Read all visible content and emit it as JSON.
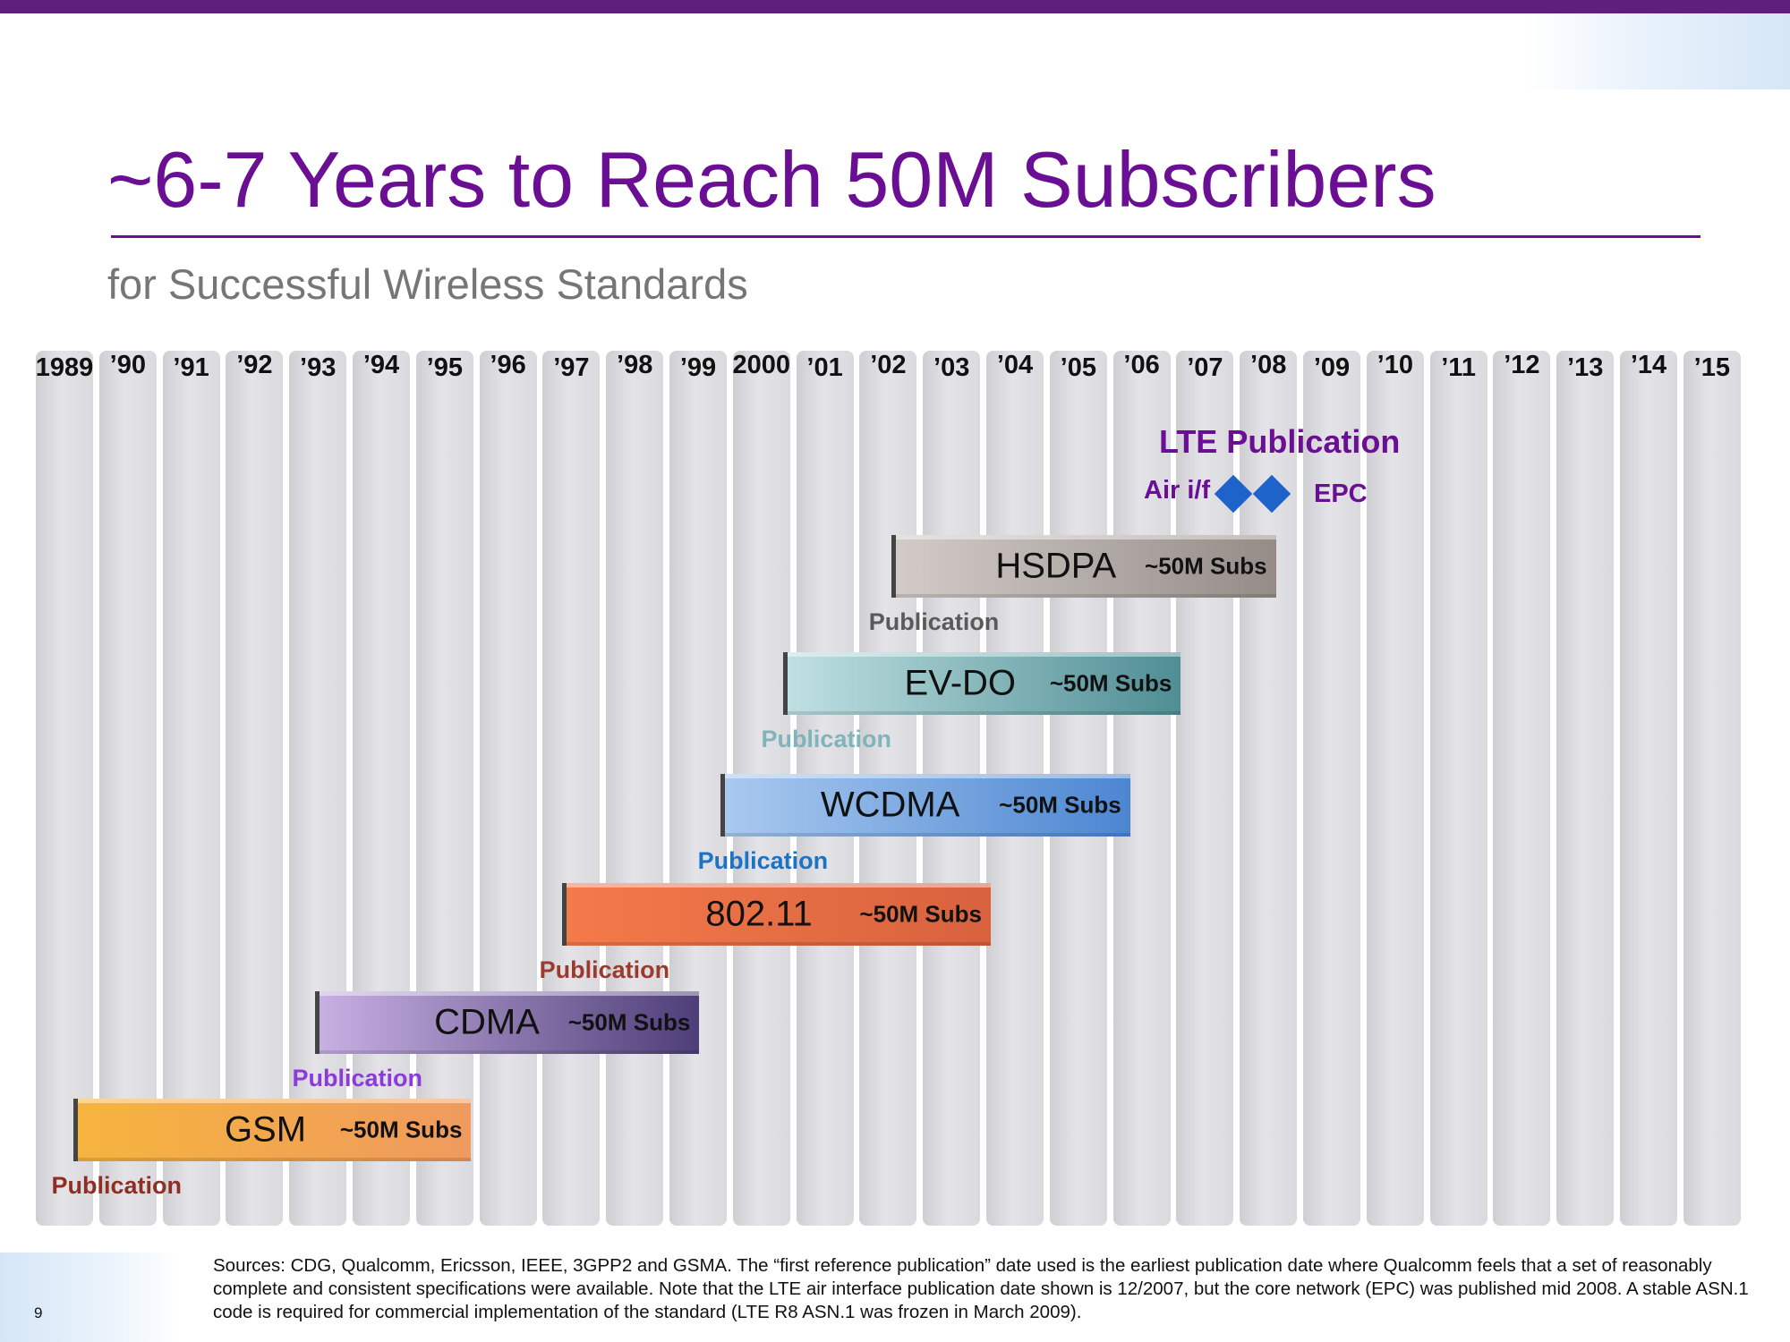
{
  "slide": {
    "title": "~6-7 Years to Reach 50M Subscribers",
    "subtitle": "for Successful Wireless Standards",
    "page_number": "9",
    "footnote": "Sources: CDG, Qualcomm, Ericsson, IEEE, 3GPP2 and GSMA. The “first reference publication” date used is the earliest publication date where Qualcomm feels that a set of reasonably complete and consistent specifications were available. Note that the LTE air interface publication date shown is 12/2007, but the core network (EPC) was published mid 2008. A stable ASN.1 code is required for commercial implementation of the standard (LTE R8 ASN.1 was frozen in March 2009)."
  },
  "timeline": {
    "years": [
      "1989",
      "’90",
      "’91",
      "’92",
      "’93",
      "’94",
      "’95",
      "’96",
      "’97",
      "’98",
      "’99",
      "2000",
      "’01",
      "’02",
      "’03",
      "’04",
      "’05",
      "’06",
      "’07",
      "’08",
      "’09",
      "’10",
      "’11",
      "’12",
      "’13",
      "’14",
      "’15"
    ],
    "standards": [
      {
        "name": "HSDPA",
        "subs": "~50M Subs",
        "publication": "Publication",
        "start_year": 2002.5,
        "end_year": 2008.5,
        "color_from": "#d2cbc8",
        "color_to": "#958c88",
        "pub_color": "#5a5a5a"
      },
      {
        "name": "EV-DO",
        "subs": "~50M Subs",
        "publication": "Publication",
        "start_year": 2000.8,
        "end_year": 2007.0,
        "color_from": "#bfe0e2",
        "color_to": "#4f8e94",
        "pub_color": "#7fb4bb"
      },
      {
        "name": "WCDMA",
        "subs": "~50M Subs",
        "publication": "Publication",
        "start_year": 1999.8,
        "end_year": 2006.2,
        "color_from": "#a9c9ef",
        "color_to": "#4c86d2",
        "pub_color": "#1c72c4"
      },
      {
        "name": "802.11",
        "subs": "~50M Subs",
        "publication": "Publication",
        "start_year": 1997.3,
        "end_year": 2004.0,
        "color_from": "#f47a4a",
        "color_to": "#d8623e",
        "pub_color": "#9b3b2e"
      },
      {
        "name": "CDMA",
        "subs": "~50M Subs",
        "publication": "Publication",
        "start_year": 1993.4,
        "end_year": 1999.4,
        "color_from": "#c7b0e2",
        "color_to": "#4e3e78",
        "pub_color": "#8a3bd9"
      },
      {
        "name": "GSM",
        "subs": "~50M Subs",
        "publication": "Publication",
        "start_year": 1989.6,
        "end_year": 1995.8,
        "color_from": "#f6b43e",
        "color_to": "#ef9a5e",
        "pub_color": "#8f2e25"
      }
    ],
    "lte": {
      "title": "LTE Publication",
      "air_label": "Air i/f",
      "epc_label": "EPC",
      "air_year": 2007.9,
      "epc_year": 2008.5,
      "diamond_color": "#1d63c9"
    }
  }
}
